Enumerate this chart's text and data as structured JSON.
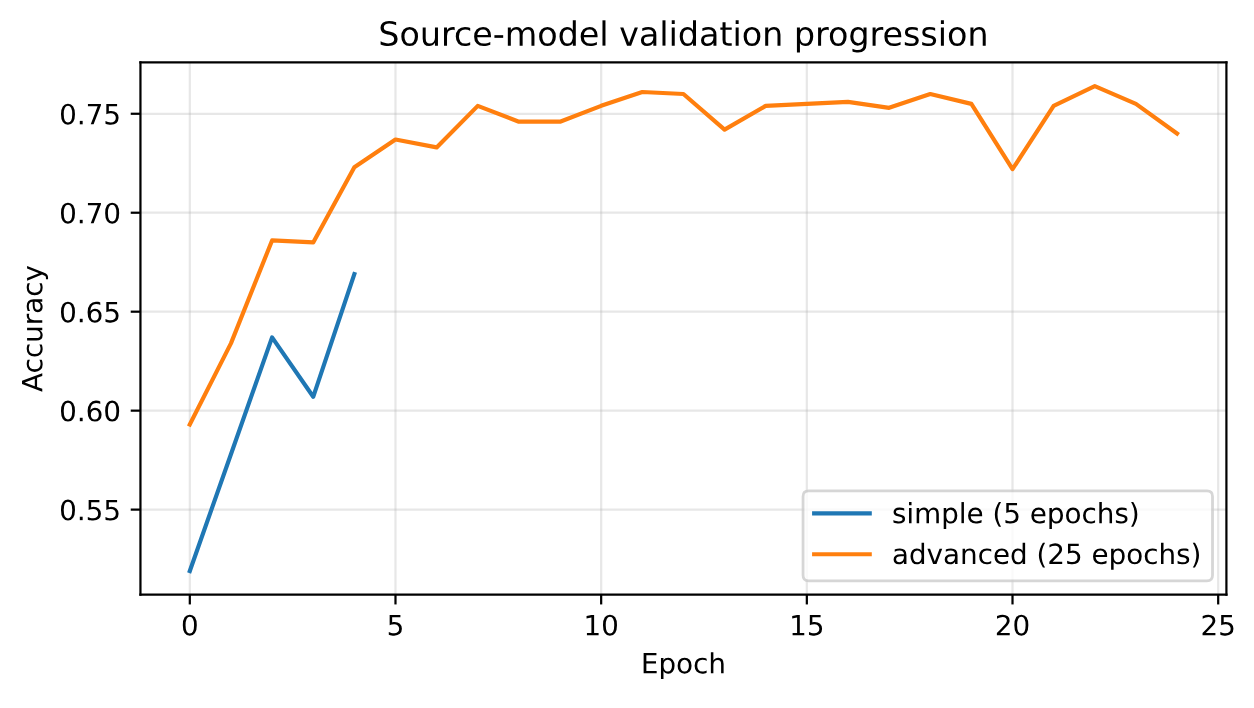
{
  "chart_data": {
    "type": "line",
    "title": "Source-model validation progression",
    "xlabel": "Epoch",
    "ylabel": "Accuracy",
    "xlim": [
      -1.2,
      25.2
    ],
    "xticks": [
      0,
      5,
      10,
      15,
      20,
      25
    ],
    "ylim": [
      0.507,
      0.776
    ],
    "yticks": [
      0.55,
      {
        "value": 0.6,
        "label": "0.60"
      },
      0.65,
      {
        "value": 0.7,
        "label": "0.70"
      },
      0.75
    ],
    "grid": true,
    "legend": "bottom right",
    "series": [
      {
        "name": "simple (5 epochs)",
        "color": "#1f77b4",
        "x": [
          0,
          1,
          2,
          3,
          4
        ],
        "values": [
          0.519,
          0.578,
          0.637,
          0.607,
          0.669
        ]
      },
      {
        "name": "advanced (25 epochs)",
        "color": "#ff7f0e",
        "x": [
          0,
          1,
          2,
          3,
          4,
          5,
          6,
          7,
          8,
          9,
          10,
          11,
          12,
          13,
          14,
          15,
          16,
          17,
          18,
          19,
          20,
          21,
          22,
          23,
          24
        ],
        "values": [
          0.593,
          0.634,
          0.686,
          0.685,
          0.723,
          0.737,
          0.733,
          0.754,
          0.746,
          0.746,
          0.754,
          0.761,
          0.76,
          0.742,
          0.754,
          0.755,
          0.756,
          0.753,
          0.76,
          0.755,
          0.722,
          0.754,
          0.764,
          0.755,
          0.74
        ]
      }
    ]
  }
}
